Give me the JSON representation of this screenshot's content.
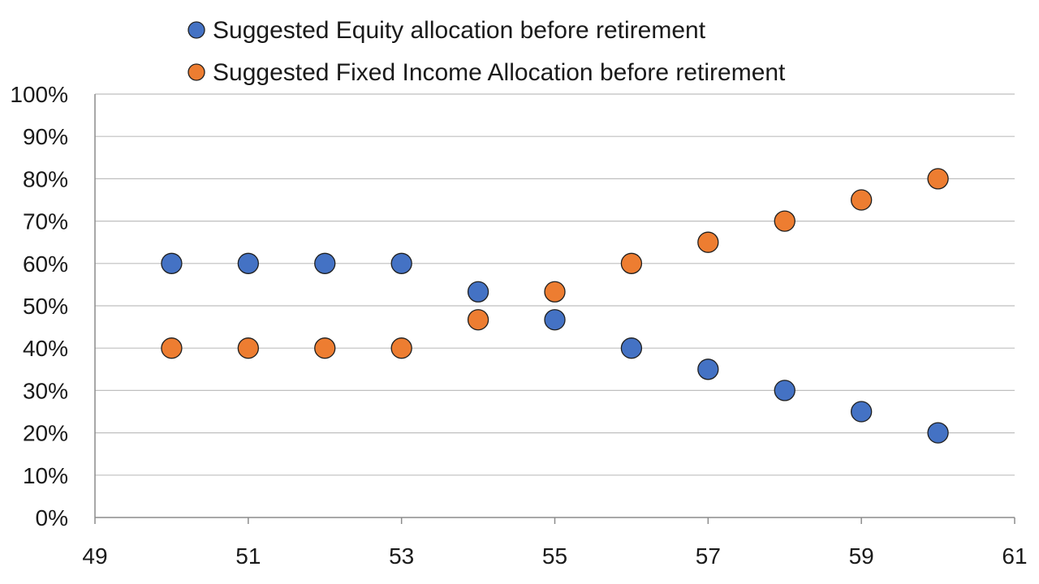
{
  "chart_data": {
    "type": "scatter",
    "title": "",
    "xlabel": "",
    "ylabel": "",
    "xlim": [
      49,
      61
    ],
    "ylim": [
      0,
      100
    ],
    "x_ticks": [
      49,
      51,
      53,
      55,
      57,
      59,
      61
    ],
    "y_ticks": [
      0,
      10,
      20,
      30,
      40,
      50,
      60,
      70,
      80,
      90,
      100
    ],
    "y_tick_format": "percent",
    "grid": "horizontal",
    "legend_position": "top",
    "series": [
      {
        "name": "Suggested Equity allocation before retirement",
        "color": "#4472c4",
        "points": [
          {
            "x": 50,
            "y": 60
          },
          {
            "x": 51,
            "y": 60
          },
          {
            "x": 52,
            "y": 60
          },
          {
            "x": 53,
            "y": 60
          },
          {
            "x": 54,
            "y": 53.3
          },
          {
            "x": 55,
            "y": 46.7
          },
          {
            "x": 56,
            "y": 40
          },
          {
            "x": 57,
            "y": 35
          },
          {
            "x": 58,
            "y": 30
          },
          {
            "x": 59,
            "y": 25
          },
          {
            "x": 60,
            "y": 20
          }
        ]
      },
      {
        "name": "Suggested Fixed Income Allocation before retirement",
        "color": "#ed7d31",
        "points": [
          {
            "x": 50,
            "y": 40
          },
          {
            "x": 51,
            "y": 40
          },
          {
            "x": 52,
            "y": 40
          },
          {
            "x": 53,
            "y": 40
          },
          {
            "x": 54,
            "y": 46.7
          },
          {
            "x": 55,
            "y": 53.3
          },
          {
            "x": 56,
            "y": 60
          },
          {
            "x": 57,
            "y": 65
          },
          {
            "x": 58,
            "y": 70
          },
          {
            "x": 59,
            "y": 75
          },
          {
            "x": 60,
            "y": 80
          }
        ]
      }
    ]
  }
}
